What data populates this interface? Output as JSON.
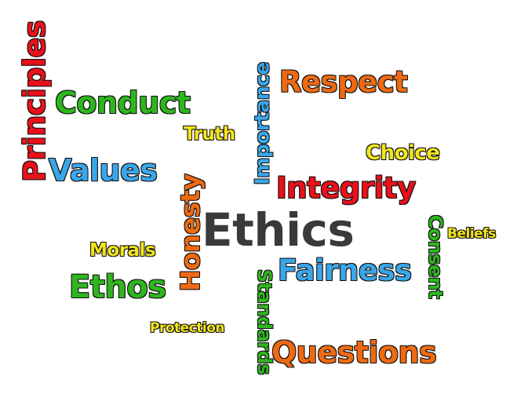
{
  "words": {
    "principles": {
      "text": "Principles",
      "color": "#e8111a"
    },
    "conduct": {
      "text": "Conduct",
      "color": "#2fb51f"
    },
    "truth": {
      "text": "Truth",
      "color": "#f3e51a"
    },
    "importance": {
      "text": "Importance",
      "color": "#3aa6e8"
    },
    "respect": {
      "text": "Respect",
      "color": "#ee6a12"
    },
    "choice": {
      "text": "Choice",
      "color": "#f3e51a"
    },
    "values": {
      "text": "Values",
      "color": "#3aa6e8"
    },
    "honesty": {
      "text": "Honesty",
      "color": "#ee6a12"
    },
    "integrity": {
      "text": "Integrity",
      "color": "#e8111a"
    },
    "consent": {
      "text": "Consent",
      "color": "#2fb51f"
    },
    "beliefs": {
      "text": "Beliefs",
      "color": "#f3e51a"
    },
    "ethics": {
      "text": "Ethics",
      "color": "#3a3a3a"
    },
    "morals": {
      "text": "Morals",
      "color": "#f3e51a"
    },
    "fairness": {
      "text": "Fairness",
      "color": "#3aa6e8"
    },
    "standards": {
      "text": "Standards",
      "color": "#2fb51f"
    },
    "ethos": {
      "text": "Ethos",
      "color": "#2fb51f"
    },
    "protection": {
      "text": "Protection",
      "color": "#f3e51a"
    },
    "questions": {
      "text": "Questions",
      "color": "#ee6a12"
    }
  }
}
